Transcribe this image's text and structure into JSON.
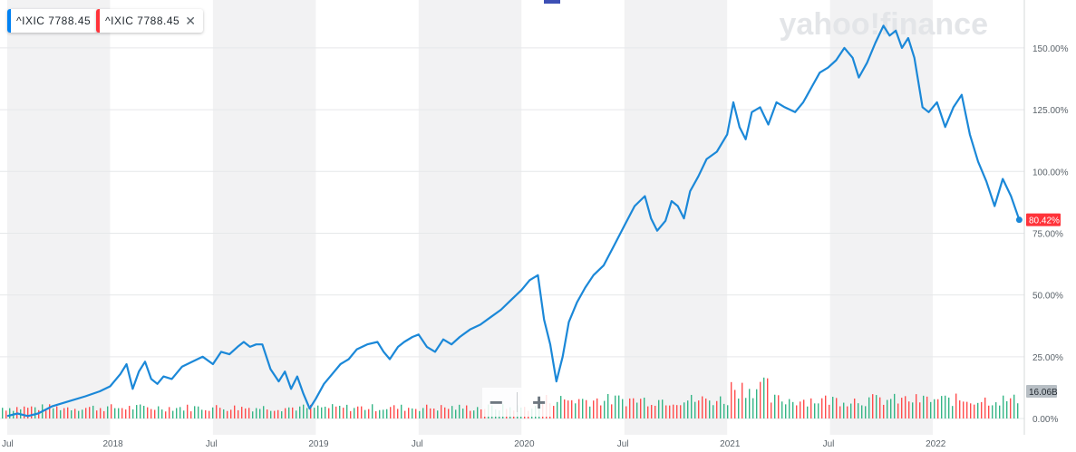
{
  "legend": {
    "items": [
      {
        "label": "^IXIC 7788.45",
        "color": "#0081f2",
        "closable": false
      },
      {
        "label": "^IXIC 7788.45",
        "color": "#ff333a",
        "closable": true
      }
    ]
  },
  "watermark": "yahoo!finance",
  "zoom": {
    "minus_label": "−",
    "plus_label": "+"
  },
  "colors": {
    "line": "#1b88d8",
    "band": "#f2f2f3",
    "up_volume": "#35b586",
    "down_volume": "#ff4c4c",
    "badge": "#ff333a",
    "volume_badge": "#b7bec4"
  },
  "chart_data": {
    "type": "line",
    "ylim": [
      0,
      165
    ],
    "y_ticks": [
      0,
      25,
      50,
      75,
      100,
      125,
      150
    ],
    "y_tick_labels": [
      "0.00%",
      "25.00%",
      "50.00%",
      "75.00%",
      "100.00%",
      "125.00%",
      "150.00%"
    ],
    "x_ticks": [
      {
        "t": 2017.5,
        "label": "Jul"
      },
      {
        "t": 2018.0,
        "label": "2018"
      },
      {
        "t": 2018.5,
        "label": "Jul"
      },
      {
        "t": 2019.0,
        "label": "2019"
      },
      {
        "t": 2019.5,
        "label": "Jul"
      },
      {
        "t": 2020.0,
        "label": "2020"
      },
      {
        "t": 2020.5,
        "label": "Jul"
      },
      {
        "t": 2021.0,
        "label": "2021"
      },
      {
        "t": 2021.5,
        "label": "Jul"
      },
      {
        "t": 2022.0,
        "label": "2022"
      }
    ],
    "xlim": [
      2017.5,
      2022.48
    ],
    "series": [
      {
        "values": [
          [
            2017.5,
            1
          ],
          [
            2017.55,
            2
          ],
          [
            2017.6,
            1
          ],
          [
            2017.65,
            2
          ],
          [
            2017.72,
            5
          ],
          [
            2017.8,
            7
          ],
          [
            2017.88,
            9
          ],
          [
            2017.95,
            11
          ],
          [
            2018.0,
            13
          ],
          [
            2018.05,
            18
          ],
          [
            2018.08,
            22
          ],
          [
            2018.11,
            12
          ],
          [
            2018.14,
            19
          ],
          [
            2018.17,
            23
          ],
          [
            2018.2,
            16
          ],
          [
            2018.23,
            14
          ],
          [
            2018.26,
            17
          ],
          [
            2018.3,
            16
          ],
          [
            2018.35,
            21
          ],
          [
            2018.4,
            23
          ],
          [
            2018.45,
            25
          ],
          [
            2018.5,
            22
          ],
          [
            2018.54,
            27
          ],
          [
            2018.58,
            26
          ],
          [
            2018.62,
            29
          ],
          [
            2018.65,
            31
          ],
          [
            2018.68,
            29
          ],
          [
            2018.71,
            30
          ],
          [
            2018.74,
            30
          ],
          [
            2018.78,
            20
          ],
          [
            2018.82,
            15
          ],
          [
            2018.85,
            19
          ],
          [
            2018.88,
            12
          ],
          [
            2018.91,
            17
          ],
          [
            2018.94,
            10
          ],
          [
            2018.97,
            4
          ],
          [
            2019.0,
            8
          ],
          [
            2019.04,
            14
          ],
          [
            2019.08,
            18
          ],
          [
            2019.12,
            22
          ],
          [
            2019.16,
            24
          ],
          [
            2019.2,
            28
          ],
          [
            2019.25,
            30
          ],
          [
            2019.3,
            31
          ],
          [
            2019.33,
            27
          ],
          [
            2019.36,
            24
          ],
          [
            2019.4,
            29
          ],
          [
            2019.43,
            31
          ],
          [
            2019.47,
            33
          ],
          [
            2019.5,
            34
          ],
          [
            2019.54,
            29
          ],
          [
            2019.58,
            27
          ],
          [
            2019.62,
            32
          ],
          [
            2019.66,
            30
          ],
          [
            2019.7,
            33
          ],
          [
            2019.75,
            36
          ],
          [
            2019.8,
            38
          ],
          [
            2019.85,
            41
          ],
          [
            2019.9,
            44
          ],
          [
            2019.95,
            48
          ],
          [
            2020.0,
            52
          ],
          [
            2020.04,
            56
          ],
          [
            2020.08,
            58
          ],
          [
            2020.11,
            40
          ],
          [
            2020.14,
            30
          ],
          [
            2020.17,
            15
          ],
          [
            2020.2,
            25
          ],
          [
            2020.23,
            39
          ],
          [
            2020.27,
            47
          ],
          [
            2020.31,
            53
          ],
          [
            2020.35,
            58
          ],
          [
            2020.4,
            62
          ],
          [
            2020.45,
            70
          ],
          [
            2020.5,
            78
          ],
          [
            2020.55,
            86
          ],
          [
            2020.6,
            90
          ],
          [
            2020.63,
            81
          ],
          [
            2020.66,
            76
          ],
          [
            2020.7,
            80
          ],
          [
            2020.73,
            88
          ],
          [
            2020.76,
            86
          ],
          [
            2020.79,
            81
          ],
          [
            2020.82,
            92
          ],
          [
            2020.86,
            98
          ],
          [
            2020.9,
            105
          ],
          [
            2020.95,
            108
          ],
          [
            2021.0,
            115
          ],
          [
            2021.03,
            128
          ],
          [
            2021.06,
            118
          ],
          [
            2021.09,
            113
          ],
          [
            2021.12,
            124
          ],
          [
            2021.16,
            126
          ],
          [
            2021.2,
            119
          ],
          [
            2021.24,
            128
          ],
          [
            2021.28,
            126
          ],
          [
            2021.33,
            124
          ],
          [
            2021.37,
            128
          ],
          [
            2021.41,
            134
          ],
          [
            2021.45,
            140
          ],
          [
            2021.49,
            142
          ],
          [
            2021.53,
            145
          ],
          [
            2021.57,
            150
          ],
          [
            2021.61,
            146
          ],
          [
            2021.64,
            138
          ],
          [
            2021.68,
            144
          ],
          [
            2021.72,
            152
          ],
          [
            2021.76,
            159
          ],
          [
            2021.79,
            155
          ],
          [
            2021.82,
            157
          ],
          [
            2021.85,
            150
          ],
          [
            2021.88,
            154
          ],
          [
            2021.91,
            146
          ],
          [
            2021.95,
            126
          ],
          [
            2021.98,
            124
          ],
          [
            2022.02,
            128
          ],
          [
            2022.06,
            118
          ],
          [
            2022.1,
            126
          ],
          [
            2022.14,
            131
          ],
          [
            2022.18,
            115
          ],
          [
            2022.22,
            104
          ],
          [
            2022.26,
            96
          ],
          [
            2022.3,
            86
          ],
          [
            2022.34,
            97
          ],
          [
            2022.38,
            90
          ],
          [
            2022.42,
            80.42
          ]
        ]
      }
    ],
    "last_value_label": "80.42%",
    "volume_label": "16.06B",
    "volume_scale_max": 35
  }
}
